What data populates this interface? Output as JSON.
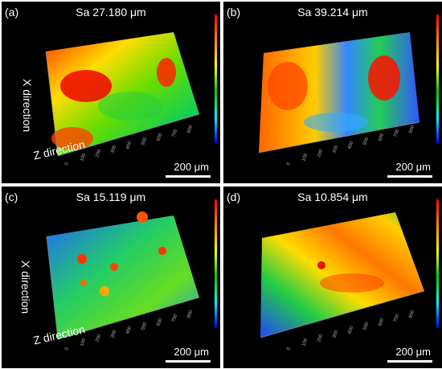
{
  "panels": [
    {
      "label": "(a)",
      "title": "Sa 27.180 μm",
      "scale": "200 μm",
      "x_label": "X direction",
      "z_label": "Z direction"
    },
    {
      "label": "(b)",
      "title": "Sa 39.214 μm",
      "scale": "200 μm",
      "x_label": "",
      "z_label": ""
    },
    {
      "label": "(c)",
      "title": "Sa 15.119 μm",
      "scale": "200 μm",
      "x_label": "X direction",
      "z_label": "Z direction"
    },
    {
      "label": "(d)",
      "title": "Sa 10.854 μm",
      "scale": "200 μm",
      "x_label": "",
      "z_label": ""
    }
  ],
  "axis_ticks": [
    "0",
    "100",
    "200",
    "300",
    "400",
    "500",
    "600",
    "700",
    "800"
  ],
  "colors": {
    "background": "#000000",
    "high": "#ff0000",
    "mid_high": "#ffff00",
    "mid": "#00cc00",
    "low": "#0000ff"
  }
}
